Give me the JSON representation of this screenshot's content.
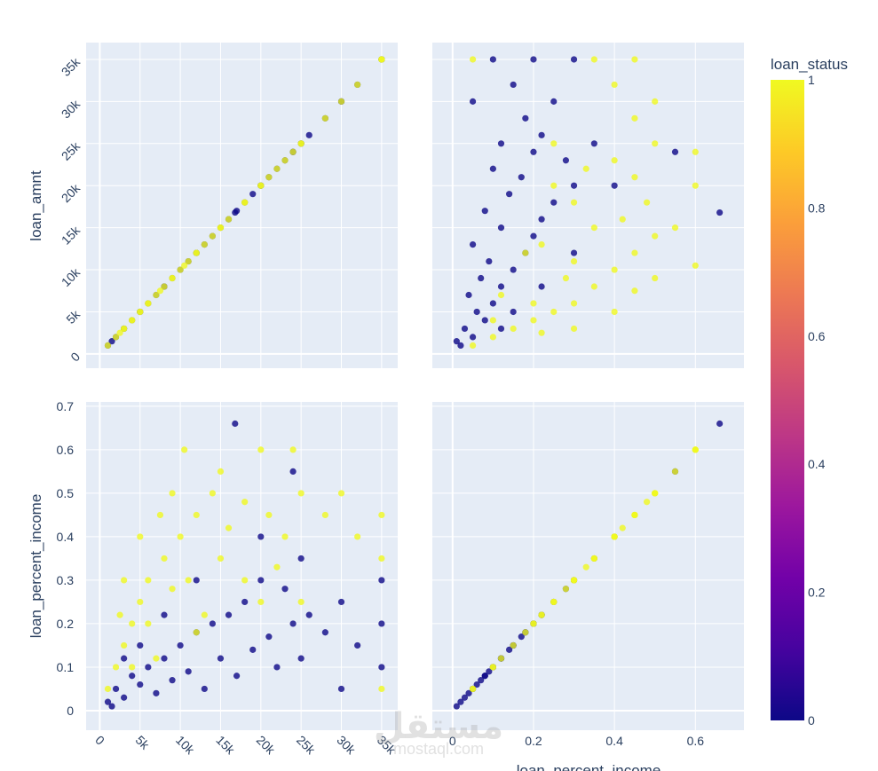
{
  "chart_data": {
    "type": "scatter",
    "subtype": "scatter_matrix",
    "dimensions": [
      "loan_amnt",
      "loan_percent_income"
    ],
    "color_variable": "loan_status",
    "colorbar": {
      "title": "loan_status",
      "range": [
        0,
        1
      ],
      "ticks": [
        "0",
        "0.2",
        "0.4",
        "0.6",
        "0.8",
        "1"
      ],
      "colorscale": [
        "#0d0887",
        "#46039f",
        "#7201a8",
        "#9c179e",
        "#bd3786",
        "#d8576b",
        "#ed7953",
        "#fb9f3a",
        "#fdca26",
        "#f0f921"
      ]
    },
    "axes": {
      "loan_amnt": {
        "range": [
          -1700,
          37000
        ],
        "ticks": [
          0,
          5000,
          10000,
          15000,
          20000,
          25000,
          30000,
          35000
        ],
        "tick_labels": [
          "0",
          "5k",
          "10k",
          "15k",
          "20k",
          "25k",
          "30k",
          "35k"
        ]
      },
      "loan_percent_income_x": {
        "range": [
          -0.05,
          0.72
        ],
        "ticks": [
          0,
          0.2,
          0.4,
          0.6
        ],
        "tick_labels": [
          "0",
          "0.2",
          "0.4",
          "0.6"
        ]
      },
      "loan_percent_income_y": {
        "range": [
          -0.045,
          0.71
        ],
        "ticks": [
          0,
          0.1,
          0.2,
          0.3,
          0.4,
          0.5,
          0.6,
          0.7
        ],
        "tick_labels": [
          "0",
          "0.1",
          "0.2",
          "0.3",
          "0.4",
          "0.5",
          "0.6",
          "0.7"
        ]
      }
    },
    "axis_titles": {
      "top_row_y": "loan_amnt",
      "bottom_row_y": "loan_percent_income",
      "right_col_x": "loan_percent_income"
    },
    "points_fields": [
      "loan_amnt",
      "loan_percent_income",
      "loan_status"
    ],
    "points": [
      [
        1000,
        0.02,
        0
      ],
      [
        2000,
        0.05,
        0
      ],
      [
        3000,
        0.03,
        0
      ],
      [
        4000,
        0.08,
        0
      ],
      [
        5000,
        0.06,
        0
      ],
      [
        6000,
        0.1,
        0
      ],
      [
        7000,
        0.04,
        0
      ],
      [
        8000,
        0.12,
        0
      ],
      [
        9000,
        0.07,
        0
      ],
      [
        10000,
        0.15,
        0
      ],
      [
        11000,
        0.09,
        0
      ],
      [
        12000,
        0.18,
        0
      ],
      [
        13000,
        0.05,
        0
      ],
      [
        14000,
        0.2,
        0
      ],
      [
        15000,
        0.12,
        0
      ],
      [
        16000,
        0.22,
        0
      ],
      [
        17000,
        0.08,
        0
      ],
      [
        18000,
        0.25,
        0
      ],
      [
        19000,
        0.14,
        0
      ],
      [
        20000,
        0.3,
        0
      ],
      [
        21000,
        0.17,
        0
      ],
      [
        22000,
        0.1,
        0
      ],
      [
        23000,
        0.28,
        0
      ],
      [
        24000,
        0.2,
        0
      ],
      [
        25000,
        0.35,
        0
      ],
      [
        25000,
        0.12,
        0
      ],
      [
        26000,
        0.22,
        0
      ],
      [
        28000,
        0.18,
        0
      ],
      [
        30000,
        0.25,
        0
      ],
      [
        32000,
        0.15,
        0
      ],
      [
        35000,
        0.3,
        0
      ],
      [
        35000,
        0.1,
        0
      ],
      [
        35000,
        0.2,
        0
      ],
      [
        12000,
        0.3,
        0
      ],
      [
        8000,
        0.22,
        0
      ],
      [
        5000,
        0.15,
        0
      ],
      [
        3000,
        0.12,
        0
      ],
      [
        16800,
        0.66,
        0
      ],
      [
        24000,
        0.55,
        0
      ],
      [
        20000,
        0.4,
        0
      ],
      [
        1500,
        0.01,
        0
      ],
      [
        30000,
        0.05,
        0
      ],
      [
        1000,
        0.05,
        1
      ],
      [
        2000,
        0.1,
        1
      ],
      [
        3000,
        0.15,
        1
      ],
      [
        4000,
        0.2,
        1
      ],
      [
        5000,
        0.25,
        1
      ],
      [
        6000,
        0.3,
        1
      ],
      [
        7000,
        0.12,
        1
      ],
      [
        8000,
        0.35,
        1
      ],
      [
        9000,
        0.28,
        1
      ],
      [
        10000,
        0.4,
        1
      ],
      [
        10500,
        0.6,
        1
      ],
      [
        12000,
        0.45,
        1
      ],
      [
        13000,
        0.22,
        1
      ],
      [
        14000,
        0.5,
        1
      ],
      [
        15000,
        0.35,
        1
      ],
      [
        16000,
        0.42,
        1
      ],
      [
        18000,
        0.3,
        1
      ],
      [
        20000,
        0.6,
        1
      ],
      [
        21000,
        0.45,
        1
      ],
      [
        22000,
        0.33,
        1
      ],
      [
        24000,
        0.6,
        1
      ],
      [
        25000,
        0.5,
        1
      ],
      [
        25000,
        0.25,
        1
      ],
      [
        28000,
        0.45,
        1
      ],
      [
        30000,
        0.5,
        1
      ],
      [
        32000,
        0.4,
        1
      ],
      [
        35000,
        0.45,
        1
      ],
      [
        35000,
        0.05,
        1
      ],
      [
        35000,
        0.35,
        1
      ],
      [
        3000,
        0.3,
        1
      ],
      [
        2500,
        0.22,
        1
      ],
      [
        5000,
        0.4,
        1
      ],
      [
        6000,
        0.2,
        1
      ],
      [
        7500,
        0.45,
        1
      ],
      [
        9000,
        0.5,
        1
      ],
      [
        12000,
        0.18,
        1
      ],
      [
        15000,
        0.55,
        1
      ],
      [
        18000,
        0.48,
        1
      ],
      [
        4000,
        0.1,
        1
      ],
      [
        11000,
        0.3,
        1
      ],
      [
        20000,
        0.25,
        1
      ],
      [
        23000,
        0.4,
        1
      ]
    ]
  },
  "watermark": {
    "arabic": "مستقل",
    "latin": "mostaql.com"
  }
}
